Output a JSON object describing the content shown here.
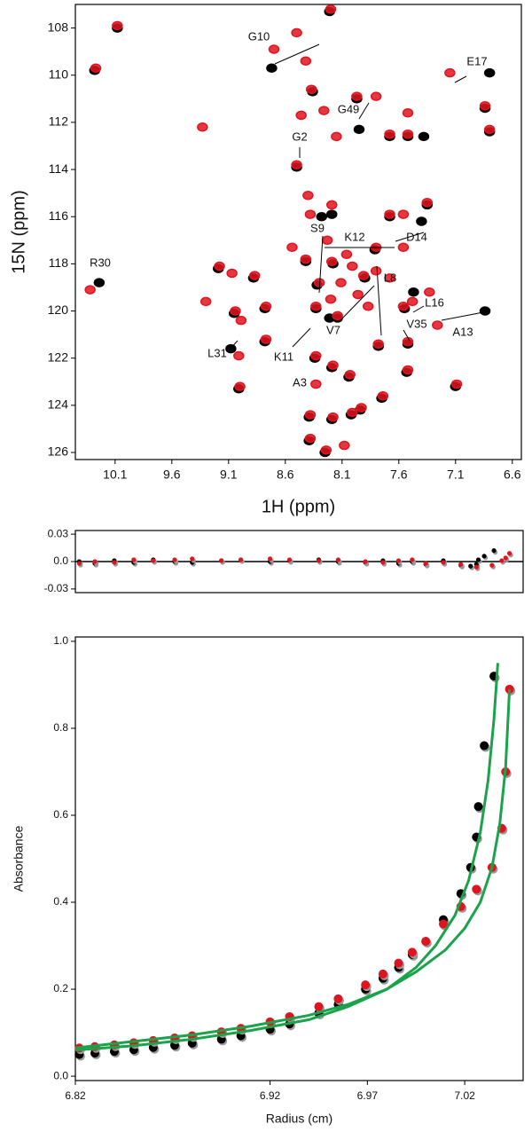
{
  "chart_data": [
    {
      "type": "scatter",
      "xlabel": "1H (ppm)",
      "ylabel": "15N (ppm)",
      "xlim": [
        10.45,
        6.52
      ],
      "ylim": [
        126.3,
        107
      ],
      "xticks": [
        10.1,
        9.6,
        9.1,
        8.6,
        8.1,
        7.6,
        7.1,
        6.6
      ],
      "yticks": [
        108,
        110,
        112,
        114,
        116,
        118,
        120,
        122,
        124,
        126
      ],
      "series": [
        {
          "color": "#000000",
          "x": [
            10.28,
            10.08,
            10.24,
            8.72,
            8.21,
            8.36,
            7.95,
            7.97,
            7.68,
            7.52,
            7.38,
            6.8,
            6.84,
            6.8,
            8.5,
            8.19,
            7.68,
            7.4,
            7.35,
            8.28,
            8.42,
            8.18,
            7.81,
            8.32,
            7.9,
            7.47,
            8.33,
            8.14,
            7.55,
            6.84,
            7.52,
            7.78,
            8.78,
            9.05,
            9.19,
            8.88,
            8.78,
            9.08,
            9.01,
            8.34,
            8.19,
            8.04,
            7.53,
            7.1,
            8.39,
            8.19,
            8.02,
            8.39,
            8.25,
            7.75,
            7.94,
            8.21
          ],
          "y": [
            109.8,
            108.0,
            118.8,
            109.7,
            107.3,
            110.7,
            112.3,
            111.0,
            112.6,
            112.6,
            112.6,
            109.9,
            111.4,
            112.4,
            113.9,
            115.9,
            116.0,
            116.2,
            115.5,
            116.0,
            117.9,
            118.0,
            117.4,
            118.9,
            118.6,
            119.2,
            119.9,
            120.3,
            119.9,
            120.0,
            121.4,
            121.5,
            121.3,
            120.1,
            118.2,
            118.6,
            119.9,
            121.6,
            123.3,
            122.0,
            122.4,
            122.8,
            122.6,
            123.2,
            124.5,
            124.6,
            124.4,
            125.5,
            126.0,
            123.7,
            124.2,
            120.3
          ]
        },
        {
          "color": "#e0141e",
          "x": [
            10.27,
            10.08,
            10.32,
            9.33,
            8.5,
            8.2,
            8.7,
            8.42,
            8.37,
            8.46,
            8.26,
            7.97,
            7.8,
            8.15,
            7.68,
            7.52,
            7.52,
            7.15,
            6.84,
            6.8,
            8.5,
            8.4,
            8.19,
            8.38,
            7.68,
            7.56,
            7.35,
            8.54,
            8.42,
            8.19,
            8.01,
            7.8,
            7.56,
            7.8,
            8.3,
            8.11,
            7.91,
            7.68,
            7.48,
            7.33,
            8.33,
            8.14,
            7.87,
            7.56,
            7.26,
            7.52,
            7.78,
            8.77,
            9.04,
            9.18,
            9.07,
            8.87,
            8.77,
            9.3,
            8.99,
            9.01,
            9.0,
            8.33,
            8.18,
            8.33,
            8.03,
            7.52,
            7.09,
            8.38,
            8.18,
            8.01,
            8.38,
            8.24,
            8.08,
            7.74,
            7.93,
            8.23,
            8.06,
            7.96,
            8.2
          ],
          "y": [
            109.7,
            107.9,
            119.1,
            112.2,
            108.2,
            107.2,
            108.9,
            109.4,
            110.6,
            111.7,
            111.5,
            110.9,
            110.9,
            112.6,
            112.5,
            112.5,
            111.6,
            109.9,
            111.3,
            112.3,
            113.8,
            115.1,
            115.5,
            115.9,
            115.9,
            115.9,
            115.4,
            117.3,
            117.8,
            117.9,
            118.1,
            117.3,
            117.3,
            118.3,
            118.8,
            118.8,
            118.5,
            118.6,
            119.6,
            119.2,
            119.8,
            120.2,
            119.8,
            119.8,
            120.6,
            121.3,
            121.4,
            121.2,
            120.0,
            118.1,
            118.4,
            118.5,
            119.8,
            119.6,
            120.4,
            121.9,
            123.2,
            121.9,
            122.3,
            123.1,
            122.7,
            122.5,
            123.1,
            124.4,
            124.5,
            124.3,
            125.4,
            125.9,
            125.7,
            123.6,
            124.1,
            117.0,
            117.6,
            119.3,
            119.5
          ]
        }
      ],
      "annotations": [
        "G10",
        "E17",
        "G49",
        "G2",
        "S9",
        "K12",
        "D14",
        "R30",
        "L8",
        "L16",
        "V7",
        "V35",
        "A13",
        "K11",
        "L31",
        "A3"
      ]
    },
    {
      "type": "scatter",
      "xlim": [
        6.82,
        7.05
      ],
      "ylim": [
        -0.034,
        0.034
      ],
      "yticks": [
        0.03,
        {
          "value": 0,
          "label": "0.0"
        },
        -0.03
      ],
      "zero_line": true,
      "series": [
        {
          "color": "#000000",
          "x": [
            6.822,
            6.83,
            6.84,
            6.85,
            6.86,
            6.871,
            6.88,
            6.895,
            6.905,
            6.92,
            6.93,
            6.945,
            6.955,
            6.969,
            6.978,
            6.986,
            6.993,
            7.0,
            7.009,
            7.018,
            7.023,
            7.026,
            7.027,
            7.03,
            7.035
          ],
          "y": [
            0.0,
            -0.002,
            0.001,
            -0.001,
            0.002,
            0.0,
            -0.001,
            0.001,
            0.002,
            0.0,
            0.001,
            0.002,
            0.0,
            -0.001,
            0.001,
            -0.002,
            0.0,
            -0.003,
            0.001,
            -0.004,
            -0.005,
            -0.003,
            0.002,
            0.006,
            0.012
          ]
        },
        {
          "color": "#e0141e",
          "x": [
            6.822,
            6.83,
            6.84,
            6.85,
            6.86,
            6.871,
            6.88,
            6.895,
            6.905,
            6.92,
            6.93,
            6.945,
            6.955,
            6.969,
            6.978,
            6.986,
            6.993,
            7.0,
            7.009,
            7.018,
            7.026,
            7.034,
            7.039,
            7.041,
            7.043
          ],
          "y": [
            -0.002,
            0.0,
            -0.001,
            0.002,
            0.001,
            0.002,
            0.003,
            0.001,
            0.002,
            0.003,
            0.002,
            0.001,
            0.002,
            0.0,
            -0.001,
            0.001,
            0.002,
            -0.002,
            -0.001,
            -0.003,
            -0.006,
            -0.004,
            0.001,
            0.004,
            0.009
          ]
        }
      ]
    },
    {
      "type": "scatter",
      "xlabel": "Radius (cm)",
      "ylabel": "Absorbance",
      "xlim": [
        6.82,
        7.05
      ],
      "ylim": [
        -0.01,
        1.01
      ],
      "xticks": [
        6.82,
        6.92,
        6.97,
        7.02
      ],
      "yticks": [
        {
          "value": 0,
          "label": "0.0"
        },
        0.2,
        0.4,
        0.6,
        0.8,
        {
          "value": 1,
          "label": "1.0"
        }
      ],
      "series": [
        {
          "color": "#000000",
          "mode": "markers",
          "x": [
            6.822,
            6.83,
            6.84,
            6.85,
            6.86,
            6.871,
            6.88,
            6.895,
            6.905,
            6.92,
            6.93,
            6.945,
            6.955,
            6.969,
            6.978,
            6.986,
            6.993,
            7.0,
            7.009,
            7.018,
            7.023,
            7.026,
            7.027,
            7.03,
            7.035
          ],
          "y": [
            0.05,
            0.053,
            0.057,
            0.061,
            0.066,
            0.071,
            0.076,
            0.085,
            0.093,
            0.108,
            0.12,
            0.145,
            0.165,
            0.2,
            0.225,
            0.25,
            0.28,
            0.31,
            0.36,
            0.42,
            0.48,
            0.55,
            0.62,
            0.76,
            0.92
          ]
        },
        {
          "color": "#e0141e",
          "mode": "markers",
          "x": [
            6.822,
            6.83,
            6.84,
            6.85,
            6.86,
            6.871,
            6.88,
            6.895,
            6.905,
            6.92,
            6.93,
            6.945,
            6.955,
            6.969,
            6.978,
            6.986,
            6.993,
            7.0,
            7.009,
            7.018,
            7.026,
            7.034,
            7.039,
            7.041,
            7.043
          ],
          "y": [
            0.065,
            0.068,
            0.072,
            0.077,
            0.082,
            0.088,
            0.093,
            0.102,
            0.11,
            0.125,
            0.137,
            0.16,
            0.178,
            0.21,
            0.235,
            0.26,
            0.285,
            0.31,
            0.35,
            0.39,
            0.43,
            0.48,
            0.57,
            0.7,
            0.89
          ]
        },
        {
          "color": "#1aa34a",
          "mode": "lines",
          "x": [
            6.82,
            6.85,
            6.88,
            6.91,
            6.94,
            6.96,
            6.98,
            6.995,
            7.005,
            7.015,
            7.022,
            7.028,
            7.032,
            7.035,
            7.037
          ],
          "y": [
            0.06,
            0.07,
            0.085,
            0.105,
            0.13,
            0.16,
            0.2,
            0.25,
            0.3,
            0.37,
            0.45,
            0.56,
            0.68,
            0.82,
            0.95
          ]
        },
        {
          "color": "#1aa34a",
          "mode": "lines",
          "x": [
            6.82,
            6.85,
            6.88,
            6.91,
            6.94,
            6.96,
            6.98,
            6.995,
            7.01,
            7.02,
            7.028,
            7.034,
            7.038,
            7.041,
            7.043
          ],
          "y": [
            0.065,
            0.08,
            0.095,
            0.115,
            0.14,
            0.165,
            0.2,
            0.24,
            0.29,
            0.34,
            0.4,
            0.48,
            0.58,
            0.71,
            0.89
          ]
        }
      ]
    }
  ]
}
